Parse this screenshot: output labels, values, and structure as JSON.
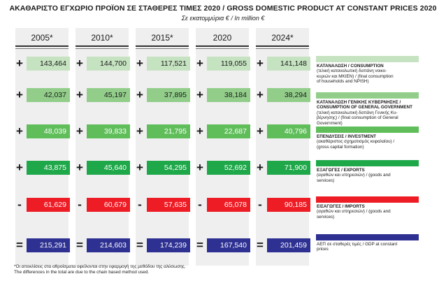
{
  "title": "ΑΚΑΘΑΡΙΣΤΟ ΕΓΧΩΡΙΟ ΠΡΟΪΟΝ ΣΕ ΣΤΑΘΕΡΕΣ ΤΙΜΕΣ 2020 / GROSS DOMESTIC PRODUCT AT CONSTANT PRICES 2020",
  "subtitle": "Σε εκατομμύρια € / In million €",
  "footnote_line1": "*Οι αποκλίσεις στα αθροίσματα οφείλονται στην εφαρμογή της μεθόδου της αλύσωσης.",
  "footnote_line2": "The differences in the total are due to the chain based method used.",
  "chart_data": {
    "type": "table",
    "categories": [
      "2005*",
      "2010*",
      "2015*",
      "2020",
      "2024*"
    ],
    "rows": [
      {
        "sign": "+",
        "color": "#c6e3c1",
        "values": [
          "143,464",
          "144,700",
          "117,521",
          "119,055",
          "141,148"
        ],
        "title": "ΚΑΤΑΝΑΛΩΣΗ / CONSUMPTION",
        "desc": [
          "(τελική καταναλωτική δαπάνη νοικο-",
          "κυριών και ΜΚΙΕΝ) / (final consumption",
          "of households and NPISH)"
        ]
      },
      {
        "sign": "+",
        "color": "#92ce8a",
        "values": [
          "42,037",
          "45,197",
          "37,895",
          "38,184",
          "38,294"
        ],
        "title": "ΚΑΤΑΝΑΛΩΣΗ ΓΕΝΙΚΗΣ ΚΥΒΕΡΝΗΣΗΣ / CONSUMPTION OF GENERAL GOVERNMENT",
        "desc": [
          "(τελική καταναλωτική δαπάνη Γενικής Κυ-",
          "βέρνησης) / (final consumption of General",
          "Government)"
        ]
      },
      {
        "sign": "+",
        "color": "#5fbe5a",
        "values": [
          "48,039",
          "39,833",
          "21,795",
          "22,687",
          "40,796"
        ],
        "title": "ΕΠΕΝΔΥΣΕΙΣ / INVESTMENT",
        "desc": [
          "(ακαθάριστος σχηματισμός κεφαλαίου) /",
          "(gross capital formation)"
        ]
      },
      {
        "sign": "+",
        "color": "#1fa84a",
        "values": [
          "43,875",
          "45,640",
          "54,295",
          "52,692",
          "71,900"
        ],
        "title": "ΕΞΑΓΩΓΕΣ / EXPORTS",
        "desc": [
          "(αγαθών και υπηρεσιών) / (goods and",
          "services)"
        ]
      },
      {
        "sign": "-",
        "color": "#ee1c25",
        "values": [
          "61,629",
          "60,679",
          "57,635",
          "65,078",
          "90,185"
        ],
        "title": "ΕΙΣΑΓΩΓΕΣ / IMPORTS",
        "desc": [
          "(αγαθών και υπηρεσιών) / (goods and",
          "services)"
        ]
      },
      {
        "sign": "=",
        "color": "#2e3192",
        "values": [
          "215,291",
          "214,603",
          "174,239",
          "167,540",
          "201,459"
        ],
        "title": "",
        "desc": [
          "ΑΕΠ σε σταθερές τιμές / GDP at constant",
          "prices"
        ]
      }
    ]
  }
}
